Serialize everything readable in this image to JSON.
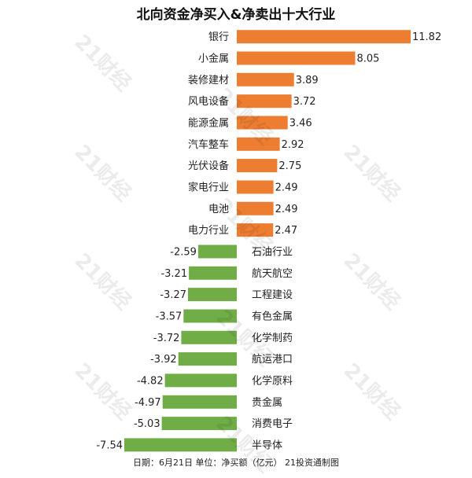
{
  "watermark": "21财经",
  "footer": "日期：6月21日 单位：净买额（亿元） 21投资通制图",
  "colors": {
    "positive": "#ED7D31",
    "negative": "#70AD47",
    "text": "#222222"
  },
  "chart_data": {
    "type": "bar",
    "orientation": "horizontal",
    "title": "北向资金净买入&净卖出十大行业",
    "unit": "亿元",
    "categories": [
      "银行",
      "小金属",
      "装修建材",
      "风电设备",
      "能源金属",
      "汽车整车",
      "光伏设备",
      "家电行业",
      "电池",
      "电力行业",
      "石油行业",
      "航天航空",
      "工程建设",
      "有色金属",
      "化学制药",
      "航运港口",
      "化学原料",
      "贵金属",
      "消费电子",
      "半导体"
    ],
    "values": [
      11.82,
      8.05,
      3.89,
      3.72,
      3.46,
      2.92,
      2.75,
      2.49,
      2.49,
      2.47,
      -2.59,
      -3.21,
      -3.27,
      -3.57,
      -3.72,
      -3.92,
      -4.82,
      -4.97,
      -5.03,
      -7.54
    ],
    "value_labels": [
      "11.82",
      "8.05",
      "3.89",
      "3.72",
      "3.46",
      "2.92",
      "2.75",
      "2.49",
      "2.49",
      "2.47",
      "-2.59",
      "-3.21",
      "-3.27",
      "-3.57",
      "-3.72",
      "-3.92",
      "-4.82",
      "-4.97",
      "-5.03",
      "-7.54"
    ],
    "xlim": [
      -7.54,
      11.82
    ],
    "grid": false,
    "legend": "none"
  }
}
